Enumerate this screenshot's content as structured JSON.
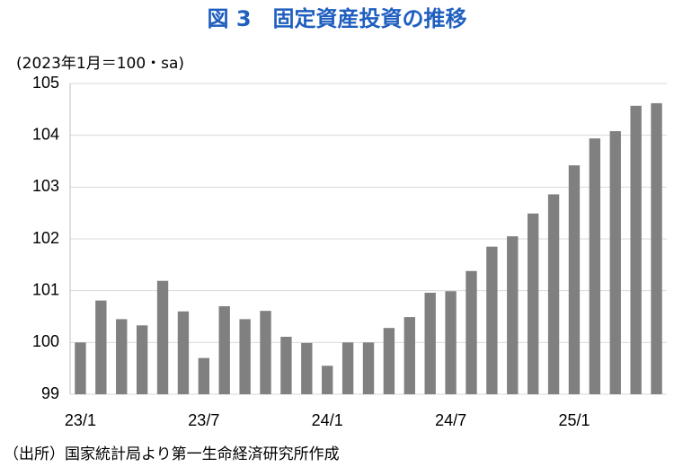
{
  "chart_data": {
    "type": "bar",
    "title": "図 3　固定資産投資の推移",
    "y_label": "(2023年1月＝100・sa)",
    "source": "（出所）国家統計局より第一生命経済研究所作成",
    "categories": [
      "23/1",
      null,
      null,
      null,
      null,
      null,
      "23/7",
      null,
      null,
      null,
      null,
      null,
      "24/1",
      null,
      null,
      null,
      null,
      null,
      "24/7",
      null,
      null,
      null,
      null,
      null,
      "25/1",
      null,
      null,
      null,
      null
    ],
    "values": [
      100.0,
      100.81,
      100.45,
      100.33,
      101.19,
      100.6,
      99.7,
      100.7,
      100.45,
      100.61,
      100.11,
      99.99,
      99.55,
      100.0,
      100.0,
      100.28,
      100.49,
      100.96,
      100.99,
      101.38,
      101.85,
      102.05,
      102.49,
      102.86,
      103.42,
      103.94,
      104.08,
      104.57,
      104.62
    ],
    "color": "#808080",
    "ylim": [
      99,
      105
    ],
    "yticks": [
      99,
      100,
      101,
      102,
      103,
      104,
      105
    ],
    "grid": true
  }
}
